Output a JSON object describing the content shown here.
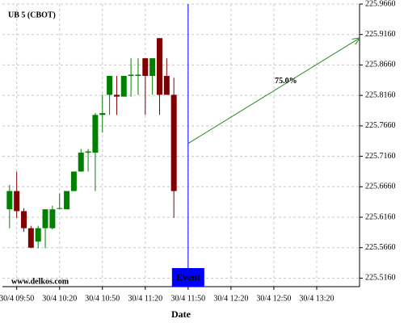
{
  "chart_data": {
    "type": "candlestick",
    "title": "UB 5 (CBOT)",
    "x_label": "Date",
    "watermark": "www.delkos.com",
    "x": [
      "30/4 09:45",
      "30/4 09:50",
      "30/4 09:55",
      "30/4 10:00",
      "30/4 10:05",
      "30/4 10:10",
      "30/4 10:15",
      "30/4 10:20",
      "30/4 10:25",
      "30/4 10:30",
      "30/4 10:35",
      "30/4 10:40",
      "30/4 10:45",
      "30/4 10:50",
      "30/4 10:55",
      "30/4 11:00",
      "30/4 11:05",
      "30/4 11:10",
      "30/4 11:15",
      "30/4 11:20",
      "30/4 11:25",
      "30/4 11:30",
      "30/4 11:35",
      "30/4 11:40"
    ],
    "open": [
      225.629,
      225.659,
      225.626,
      225.598,
      225.576,
      225.598,
      225.598,
      225.63,
      225.629,
      225.659,
      225.691,
      225.722,
      225.722,
      225.784,
      225.817,
      225.817,
      225.814,
      225.848,
      225.848,
      225.877,
      225.848,
      225.91,
      225.848,
      225.817
    ],
    "high": [
      225.669,
      225.691,
      225.631,
      225.602,
      225.602,
      225.629,
      225.635,
      225.655,
      225.655,
      225.691,
      225.728,
      225.728,
      225.787,
      225.817,
      225.848,
      225.848,
      225.848,
      225.877,
      225.877,
      225.877,
      225.877,
      225.91,
      225.877,
      225.845
    ],
    "low": [
      225.598,
      225.615,
      225.592,
      225.565,
      225.565,
      225.565,
      225.596,
      225.629,
      225.629,
      225.659,
      225.691,
      225.691,
      225.659,
      225.755,
      225.784,
      225.784,
      225.814,
      225.814,
      225.817,
      225.784,
      225.817,
      225.784,
      225.817,
      225.615
    ],
    "close": [
      225.659,
      225.626,
      225.598,
      225.566,
      225.598,
      225.629,
      225.629,
      225.631,
      225.659,
      225.691,
      225.722,
      225.724,
      225.784,
      225.787,
      225.848,
      225.814,
      225.848,
      225.85,
      225.85,
      225.848,
      225.877,
      225.817,
      225.817,
      225.659
    ],
    "up_color": "#008000",
    "down_color": "#800000",
    "xlim": [
      "30/4 09:40",
      "30/4 13:50"
    ],
    "xticks": [
      "30/4 09:50",
      "30/4 10:20",
      "30/4 10:50",
      "30/4 11:20",
      "30/4 11:50",
      "30/4 12:20",
      "30/4 12:50",
      "30/4 13:20"
    ],
    "ylim": [
      225.502,
      225.966
    ],
    "yticks": [
      {
        "value": 225.516,
        "label": "225.5160"
      },
      {
        "value": 225.566,
        "label": "225.5660"
      },
      {
        "value": 225.616,
        "label": "225.6160"
      },
      {
        "value": 225.666,
        "label": "225.6660"
      },
      {
        "value": 225.716,
        "label": "225.7160"
      },
      {
        "value": 225.766,
        "label": "225.7660"
      },
      {
        "value": 225.816,
        "label": "225.8160"
      },
      {
        "value": 225.866,
        "label": "225.8660"
      },
      {
        "value": 225.916,
        "label": "225.9160"
      },
      {
        "value": 225.966,
        "label": "225.9660"
      }
    ],
    "grid": true,
    "event": {
      "x": "30/4 11:50",
      "label": "Event",
      "color": "#0000ff"
    },
    "projection": {
      "x": [
        "30/4 11:50",
        "30/4 13:50"
      ],
      "y": [
        225.737,
        225.91
      ],
      "label": "75.0%",
      "color": "#228b22"
    }
  }
}
